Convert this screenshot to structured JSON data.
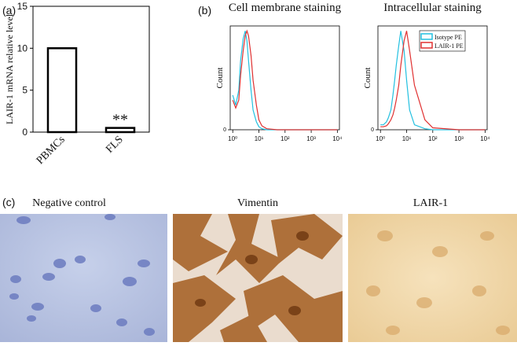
{
  "chart_data": [
    {
      "type": "bar",
      "panel": "(a)",
      "y_label": "LAIR-1 mRNA relative level",
      "categories": [
        "PBMCs",
        "FLS"
      ],
      "values": [
        10.0,
        0.5
      ],
      "color": "#000000",
      "ylim": [
        0,
        15
      ],
      "yticks": [
        0,
        5,
        10,
        15
      ],
      "annotation": "**"
    },
    {
      "type": "line",
      "panel": "(b)",
      "title": "Cell membrane staining",
      "y_label": "Count",
      "xscale": "log",
      "x": [
        1,
        1.3,
        1.7,
        2,
        2.5,
        3,
        3.5,
        4,
        5,
        6,
        8,
        10,
        13,
        20,
        50,
        100,
        1000,
        10000
      ],
      "series": [
        {
          "name": "Isotype PE",
          "color": "#22c0e0",
          "values": [
            35,
            25,
            40,
            70,
            92,
            100,
            90,
            70,
            40,
            20,
            8,
            3,
            1,
            0,
            0,
            0,
            0,
            0
          ]
        },
        {
          "name": "LAIR-1 PE",
          "color": "#e03030",
          "values": [
            30,
            22,
            30,
            55,
            80,
            95,
            100,
            95,
            75,
            50,
            25,
            10,
            4,
            1,
            0,
            0,
            0,
            0
          ]
        }
      ],
      "xlim": [
        0.8,
        12000
      ],
      "ylim": [
        0,
        105
      ],
      "yticks": [
        0
      ],
      "xticks": [
        {
          "value": 1,
          "label": "10⁰"
        },
        {
          "value": 10,
          "label": "10¹"
        },
        {
          "value": 100,
          "label": "10²"
        },
        {
          "value": 1000,
          "label": "10³"
        },
        {
          "value": 10000,
          "label": "10⁴"
        }
      ]
    },
    {
      "type": "line",
      "title": "Intracellular staining",
      "y_label": "Count",
      "xscale": "log",
      "legend": "upper right",
      "x": [
        1,
        1.3,
        1.7,
        2,
        2.5,
        3,
        3.5,
        4,
        5,
        6,
        8,
        10,
        13,
        20,
        50,
        100,
        1000,
        10000
      ],
      "series": [
        {
          "name": "Isotype PE",
          "color": "#22c0e0",
          "values": [
            5,
            5,
            8,
            12,
            20,
            35,
            50,
            65,
            85,
            100,
            80,
            50,
            20,
            5,
            1,
            0,
            0,
            0
          ]
        },
        {
          "name": "LAIR-1 PE",
          "color": "#e03030",
          "values": [
            3,
            3,
            4,
            6,
            10,
            15,
            22,
            30,
            45,
            65,
            90,
            100,
            80,
            45,
            10,
            2,
            0,
            0
          ]
        }
      ],
      "xlim": [
        0.8,
        12000
      ],
      "ylim": [
        0,
        105
      ],
      "yticks": [
        0
      ],
      "xticks": [
        {
          "value": 1,
          "label": "10⁰"
        },
        {
          "value": 10,
          "label": "10¹"
        },
        {
          "value": 100,
          "label": "10²"
        },
        {
          "value": 1000,
          "label": "10³"
        },
        {
          "value": 10000,
          "label": "10⁴"
        }
      ]
    }
  ],
  "images": {
    "panel": "(c)",
    "titles": [
      "Negative control",
      "Vimentin",
      "LAIR-1"
    ]
  }
}
